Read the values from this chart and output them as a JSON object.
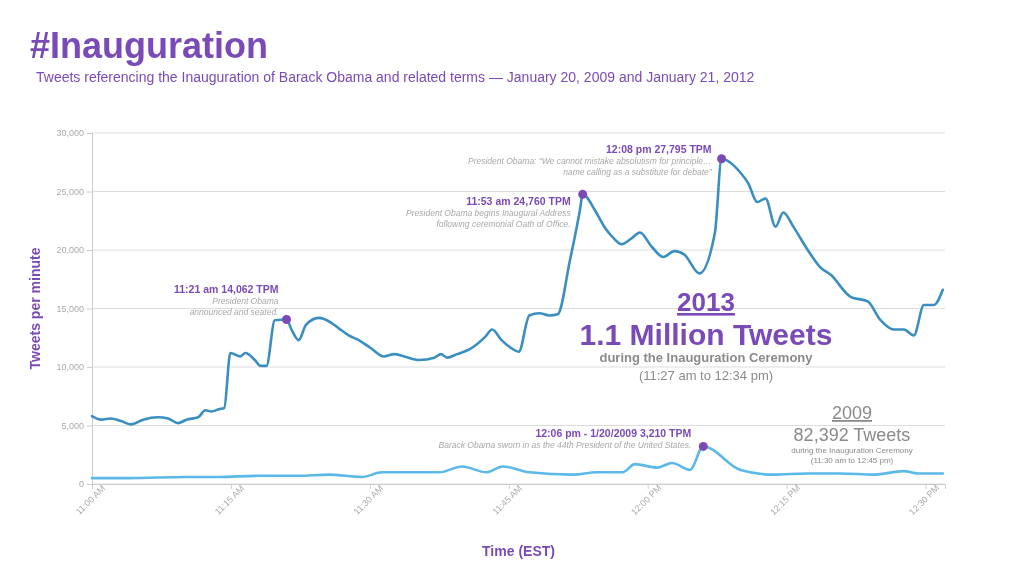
{
  "chart_data": {
    "type": "line",
    "title": "#Inauguration",
    "subtitle": "Tweets referencing the Inauguration of Barack Obama and related terms — January 20, 2009 and January 21, 2012",
    "xlabel": "Time (EST)",
    "ylabel": "Tweets per minute",
    "xlim": [
      11,
      12.535
    ],
    "ylim": [
      0,
      30000
    ],
    "xticks": [
      {
        "value": 11,
        "label": "11:00 AM"
      },
      {
        "value": 11.25,
        "label": "11:15 AM"
      },
      {
        "value": 11.5,
        "label": "11:30 AM"
      },
      {
        "value": 11.75,
        "label": "11:45 AM"
      },
      {
        "value": 12,
        "label": "12:00 PM"
      },
      {
        "value": 12.25,
        "label": "12:15 PM"
      },
      {
        "value": 12.5,
        "label": "12:30 PM"
      }
    ],
    "yticks": [
      0,
      {
        "value": 5000,
        "label": "5,000"
      },
      {
        "value": 10000,
        "label": "10,000"
      },
      {
        "value": 15000,
        "label": "15,000"
      },
      {
        "value": 20000,
        "label": "20,000"
      },
      {
        "value": 25000,
        "label": "25,000"
      },
      {
        "value": 30000,
        "label": "30,000"
      }
    ],
    "grid": "y",
    "marker": "none",
    "line_style": "solid",
    "series": [
      {
        "color": "#3a8fc0",
        "x": [
          11.0,
          11.016,
          11.034,
          11.051,
          11.07,
          11.092,
          11.119,
          11.137,
          11.155,
          11.17,
          11.191,
          11.204,
          11.215,
          11.229,
          11.238,
          11.249,
          11.267,
          11.276,
          11.293,
          11.303,
          11.314,
          11.329,
          11.35,
          11.359,
          11.372,
          11.385,
          11.408,
          11.43,
          11.444,
          11.462,
          11.48,
          11.502,
          11.525,
          11.544,
          11.562,
          11.589,
          11.616,
          11.628,
          11.639,
          11.657,
          11.679,
          11.708,
          11.72,
          11.737,
          11.755,
          11.768,
          11.787,
          11.805,
          11.823,
          11.838,
          11.86,
          11.878,
          11.883,
          11.905,
          11.923,
          11.937,
          11.953,
          11.971,
          11.986,
          12.007,
          12.028,
          12.048,
          12.066,
          12.093,
          12.121,
          12.133,
          12.167,
          12.181,
          12.197,
          12.212,
          12.23,
          12.244,
          12.262,
          12.288,
          12.311,
          12.329,
          12.365,
          12.396,
          12.419,
          12.443,
          12.461,
          12.479,
          12.497,
          12.515,
          12.531
        ],
        "values": [
          5800,
          5500,
          5600,
          5400,
          5100,
          5500,
          5700,
          5600,
          5200,
          5500,
          5700,
          6300,
          6200,
          6400,
          6500,
          11200,
          10900,
          11200,
          10600,
          10100,
          10100,
          14000,
          14062,
          13200,
          12300,
          13600,
          14200,
          13800,
          13300,
          12700,
          12300,
          11600,
          10900,
          11100,
          10900,
          10600,
          10800,
          11100,
          10800,
          11100,
          11500,
          12600,
          13200,
          12300,
          11600,
          11300,
          14400,
          14600,
          14400,
          14500,
          19100,
          23400,
          24760,
          23400,
          21900,
          21100,
          20500,
          21000,
          21500,
          20300,
          19400,
          19900,
          19600,
          18000,
          21500,
          27795,
          26600,
          25700,
          24100,
          24400,
          22000,
          23200,
          22000,
          20000,
          18500,
          17900,
          16000,
          15600,
          14000,
          13200,
          13200,
          12700,
          15300,
          15300,
          16600
        ]
      },
      {
        "color": "#5bb8e8",
        "x": [
          11.0,
          11.065,
          11.17,
          11.228,
          11.3,
          11.372,
          11.426,
          11.486,
          11.522,
          11.625,
          11.666,
          11.71,
          11.739,
          11.787,
          11.865,
          11.908,
          11.955,
          11.977,
          12.017,
          12.044,
          12.076,
          12.1,
          12.167,
          12.226,
          12.287,
          12.347,
          12.407,
          12.461,
          12.486,
          12.531
        ],
        "values": [
          500,
          500,
          600,
          600,
          700,
          700,
          800,
          600,
          1000,
          1000,
          1500,
          1000,
          1500,
          1000,
          800,
          1000,
          1000,
          1700,
          1400,
          1800,
          1200,
          3210,
          1200,
          800,
          900,
          900,
          800,
          1100,
          900,
          900
        ]
      }
    ],
    "annotations": [
      {
        "text": "11:21 am  14,062 TPM\nPresident Obama\nannounced and seated.",
        "x": 11.35,
        "y": 14062
      },
      {
        "text": "11:53 am  24,760 TPM\nPresident Obama begins Inaugural Address\nfollowing ceremonial Oath of Office.",
        "x": 11.883,
        "y": 24760
      },
      {
        "text": "12:08 pm  27,795 TPM\nPresident Obama: “We cannot mistake absolutism for principle…\nname calling as a substitute for debate”",
        "x": 12.133,
        "y": 27795
      },
      {
        "text": "12:06 pm - 1/20/2009  3,210 TPM\nBarack Obama sworn in as the 44th President of the United States.",
        "x": 12.1,
        "y": 3210
      },
      "2013\n1.1 Million Tweets\nduring the Inauguration Ceremony\n(11:27 am to 12:34 pm)",
      "2009\n82,392 Tweets\nduring the Inauguration Ceremony\n(11:30 am to 12:45 pm)"
    ]
  }
}
